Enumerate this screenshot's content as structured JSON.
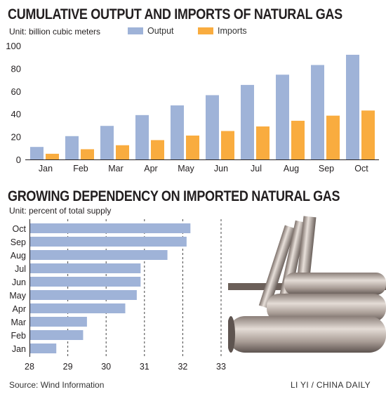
{
  "colors": {
    "output": "#9fb3d8",
    "imports": "#f9ac3f",
    "dependency": "#9fb3d8"
  },
  "chart1": {
    "title": "CUMULATIVE OUTPUT AND IMPORTS OF NATURAL GAS",
    "unit": "Unit: billion cubic meters",
    "legend": [
      "Output",
      "Imports"
    ]
  },
  "chart2": {
    "title": "GROWING DEPENDENCY ON IMPORTED NATURAL GAS",
    "unit": "Unit: percent of total supply"
  },
  "footer": {
    "source": "Source: Wind Information",
    "credit": "LI YI / CHINA DAILY"
  },
  "chart_data": [
    {
      "type": "bar",
      "title": "CUMULATIVE OUTPUT AND IMPORTS OF NATURAL GAS",
      "ylabel": "Unit: billion cubic meters",
      "categories": [
        "Jan",
        "Feb",
        "Mar",
        "Apr",
        "May",
        "Jun",
        "Jul",
        "Aug",
        "Sep",
        "Oct"
      ],
      "series": [
        {
          "name": "Output",
          "values": [
            11,
            20.5,
            29.5,
            39,
            47.5,
            56.5,
            65.5,
            74.5,
            83,
            92
          ]
        },
        {
          "name": "Imports",
          "values": [
            5,
            9,
            12.5,
            17,
            21,
            25,
            29,
            34,
            38.5,
            43
          ]
        }
      ],
      "ylim": [
        0,
        100
      ],
      "yticks": [
        0,
        20,
        40,
        60,
        80,
        100
      ],
      "grid": false,
      "legend_position": "top"
    },
    {
      "type": "bar",
      "orientation": "horizontal",
      "title": "GROWING DEPENDENCY ON IMPORTED NATURAL GAS",
      "xlabel": "Unit: percent of total supply",
      "categories": [
        "Oct",
        "Sep",
        "Aug",
        "Jul",
        "Jun",
        "May",
        "Apr",
        "Mar",
        "Feb",
        "Jan"
      ],
      "values": [
        32.2,
        32.1,
        31.6,
        30.9,
        30.9,
        30.8,
        30.5,
        29.5,
        29.4,
        28.7
      ],
      "xlim": [
        28,
        33
      ],
      "xticks": [
        28,
        29,
        30,
        31,
        32,
        33
      ],
      "grid": true
    }
  ]
}
